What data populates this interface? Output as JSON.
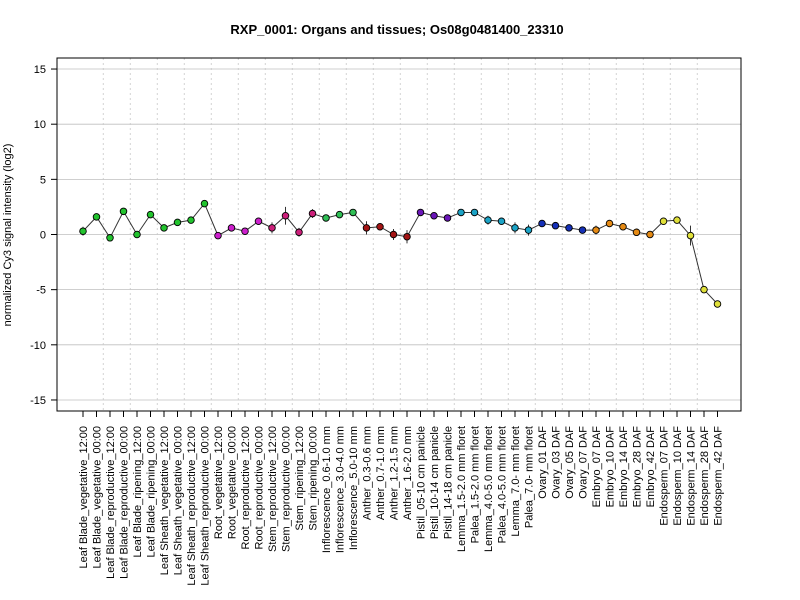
{
  "chart_data": {
    "type": "line",
    "title": "RXP_0001: Organs and tissues; Os08g0481400_23310",
    "xlabel": "",
    "ylabel": "normalized Cy3 signal intensity (log2)",
    "ylim": [
      -16,
      16
    ],
    "yticks": [
      -15,
      -10,
      -5,
      0,
      5,
      10,
      15
    ],
    "grid": "horizontal at y ticks; dotted vertical separators between tissue groups",
    "categories": [
      "Leaf Blade_vegetative_12:00",
      "Leaf Blade_vegetative_00:00",
      "Leaf Blade_reproductive_12:00",
      "Leaf Blade_reproductive_00:00",
      "Leaf Blade_ripening_12:00",
      "Leaf Blade_ripening_00:00",
      "Leaf Sheath_vegetative_12:00",
      "Leaf Sheath_vegetative_00:00",
      "Leaf Sheath_reproductive_12:00",
      "Leaf Sheath_reproductive_00:00",
      "Root_vegetative_12:00",
      "Root_vegetative_00:00",
      "Root_reproductive_12:00",
      "Root_reproductive_00:00",
      "Stem_reproductive_12:00",
      "Stem_reproductive_00:00",
      "Stem_ripening_12:00",
      "Stem_ripening_00:00",
      "Inflorescence_0.6-1.0 mm",
      "Inflorescence_3.0-4.0 mm",
      "Inflorescence_5.0-10 mm",
      "Anther_0.3-0.6 mm",
      "Anther_0.7-1.0 mm",
      "Anther_1.2-1.5 mm",
      "Anther_1.6-2.0 mm",
      "Pistil_05-10 cm panicle",
      "Pistil_10-14 cm panicle",
      "Pistil_14-18 cm panicle",
      "Lemma_1.5-2.0 mm floret",
      "Palea_1.5-2.0 mm floret",
      "Lemma_4.0-5.0 mm floret",
      "Palea_4.0-5.0 mm floret",
      "Lemma_7.0- mm floret",
      "Palea_7.0- mm floret",
      "Ovary_01 DAF",
      "Ovary_03 DAF",
      "Ovary_05 DAF",
      "Ovary_07 DAF",
      "Embryo_07 DAF",
      "Embryo_10 DAF",
      "Embryo_14 DAF",
      "Embryo_28 DAF",
      "Embryo_42 DAF",
      "Endosperm_07 DAF",
      "Endosperm_10 DAF",
      "Endosperm_14 DAF",
      "Endosperm_28 DAF",
      "Endosperm_42 DAF"
    ],
    "series": [
      {
        "values": [
          0.3,
          1.6,
          -0.3,
          2.1,
          0.0,
          1.8,
          0.6,
          1.1,
          1.3,
          2.8,
          -0.1,
          0.6,
          0.3,
          1.2,
          0.6,
          1.7,
          0.2,
          1.9,
          1.5,
          1.8,
          2.0,
          0.6,
          0.7,
          0.0,
          -0.2,
          2.0,
          1.7,
          1.5,
          2.0,
          2.0,
          1.3,
          1.2,
          0.6,
          0.4,
          1.0,
          0.8,
          0.6,
          0.4,
          0.4,
          1.0,
          0.7,
          0.2,
          0.0,
          1.2,
          1.3,
          -0.1,
          -5.0,
          -6.3
        ],
        "error": [
          0.4,
          0.2,
          0.3,
          0.2,
          0.3,
          0.2,
          0.3,
          0.3,
          0.2,
          0.3,
          0.2,
          0.2,
          0.2,
          0.3,
          0.5,
          0.8,
          0.4,
          0.4,
          0.3,
          0.2,
          0.2,
          0.6,
          0.3,
          0.5,
          0.6,
          0.2,
          0.2,
          0.3,
          0.2,
          0.2,
          0.4,
          0.3,
          0.5,
          0.5,
          0.2,
          0.2,
          0.2,
          0.2,
          0.4,
          0.2,
          0.3,
          0.2,
          0.2,
          0.3,
          0.3,
          0.9,
          0.2,
          0.2
        ]
      }
    ],
    "point_colors": [
      "#22c32e",
      "#22c32e",
      "#22c32e",
      "#22c32e",
      "#22c32e",
      "#22c32e",
      "#22c32e",
      "#22c32e",
      "#22c32e",
      "#22c32e",
      "#cc1fcc",
      "#cc1fcc",
      "#cc1fcc",
      "#cc1fcc",
      "#cc1f7a",
      "#cc1f7a",
      "#cc1f7a",
      "#cc1f7a",
      "#2fbf55",
      "#2fbf55",
      "#2fbf55",
      "#a31414",
      "#a31414",
      "#a31414",
      "#a31414",
      "#6a16b8",
      "#6a16b8",
      "#6a16b8",
      "#1ba3c6",
      "#1ba3c6",
      "#1ba3c6",
      "#1ba3c6",
      "#1ba3c6",
      "#1ba3c6",
      "#1530b8",
      "#1530b8",
      "#1530b8",
      "#1530b8",
      "#e58a14",
      "#e58a14",
      "#e58a14",
      "#e58a14",
      "#e58a14",
      "#e0e03a",
      "#e0e03a",
      "#e0e03a",
      "#e0e03a",
      "#e0e03a"
    ],
    "group_separators_after": [
      1,
      3,
      5,
      7,
      9,
      11,
      13,
      15,
      17,
      19,
      21,
      23,
      25,
      27,
      29,
      31,
      33,
      35,
      37,
      39,
      41,
      43,
      45
    ]
  }
}
